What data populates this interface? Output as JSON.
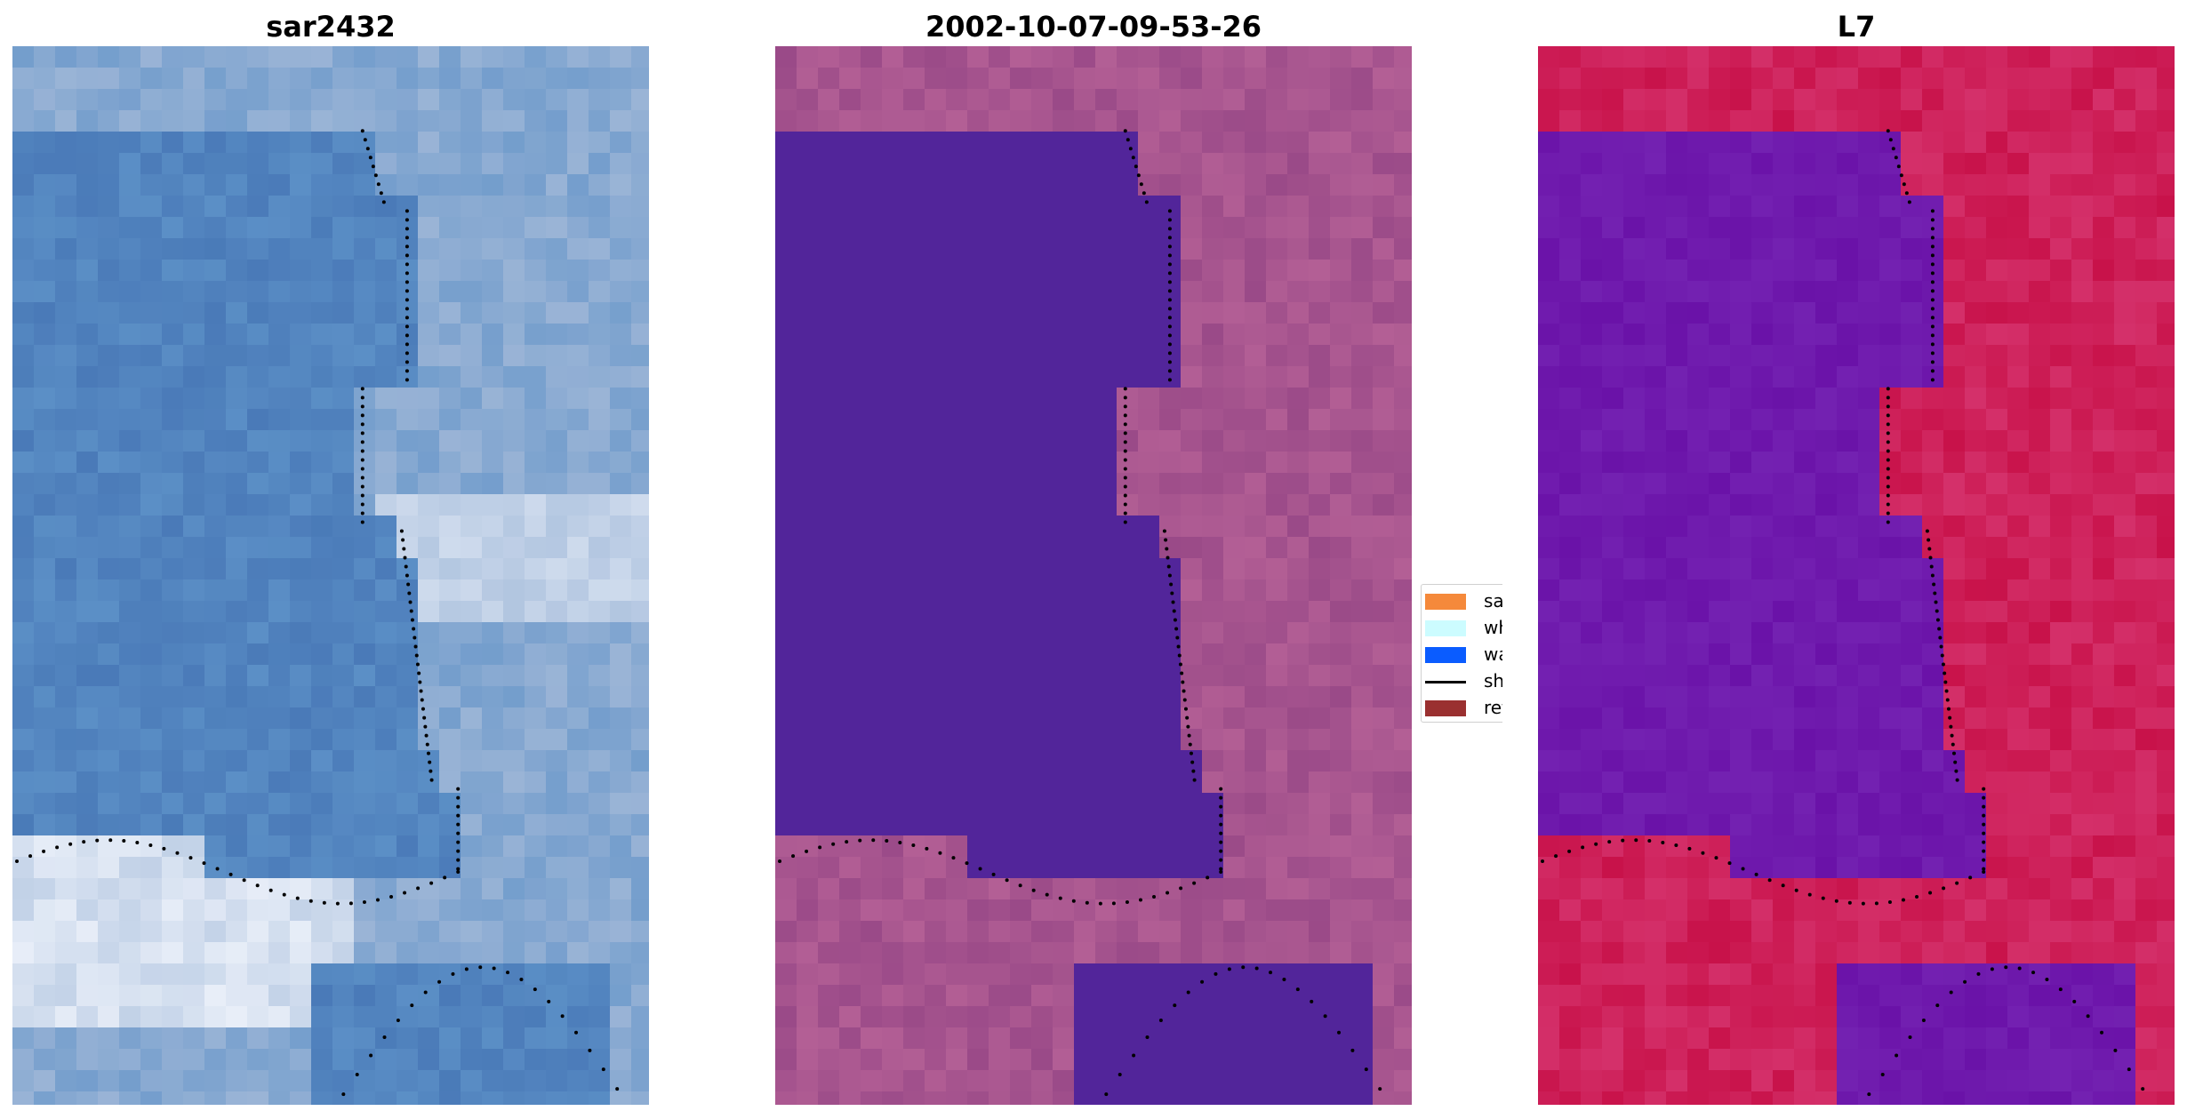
{
  "panels": [
    {
      "title": "sar2432",
      "style": "rgb",
      "palette": {
        "water": "#4a7ab8",
        "water_alt": "#5b8fc6",
        "land": "#9ab4d6",
        "bright": "#e8eef8"
      }
    },
    {
      "title": "2002-10-07-09-53-26",
      "style": "class",
      "palette": {
        "water": "#52259a",
        "land": "#9a4a88",
        "land_alt": "#b35f95"
      }
    },
    {
      "title": "L7",
      "style": "index",
      "palette": {
        "water": "#6a12a8",
        "land": "#c8124a",
        "land_alt": "#d4306a",
        "edge": "#b060a8"
      }
    }
  ],
  "legend": {
    "items": [
      {
        "label": "sand",
        "color": "#f5893b",
        "kind": "patch"
      },
      {
        "label": "whitewater",
        "color": "#ccfcff",
        "kind": "patch"
      },
      {
        "label": "water",
        "color": "#0a5cff",
        "kind": "patch"
      },
      {
        "label": "shoreline",
        "color": "#000000",
        "kind": "line"
      },
      {
        "label": "reference",
        "color": "#9a3030",
        "kind": "patch"
      }
    ]
  }
}
